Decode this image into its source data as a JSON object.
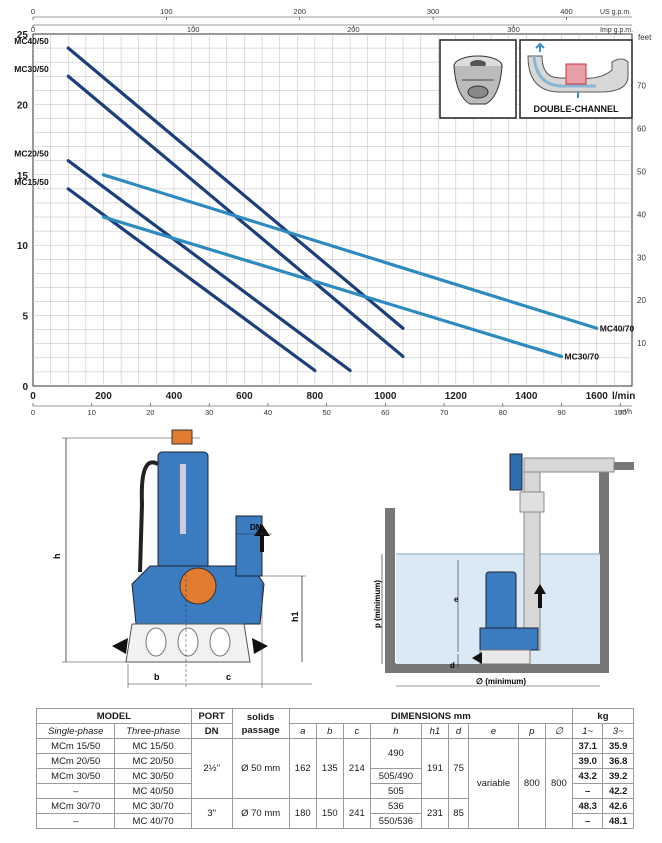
{
  "chart_data": {
    "type": "line",
    "x_axis": {
      "label": "l/min",
      "ticks": [
        0,
        200,
        400,
        600,
        800,
        1000,
        1200,
        1400,
        1600
      ],
      "range": [
        0,
        1700
      ]
    },
    "y_axis_left": {
      "ticks": [
        0,
        5,
        10,
        15,
        20,
        25
      ],
      "range": [
        0,
        25
      ]
    },
    "y_axis_right": {
      "label": "feet",
      "ticks": [
        10,
        20,
        30,
        40,
        50,
        60,
        70
      ]
    },
    "secondary_x_bottom": {
      "label": "m³/h",
      "ticks": [
        0,
        10,
        20,
        30,
        40,
        50,
        60,
        70,
        80,
        90,
        100
      ]
    },
    "secondary_x_top_us": {
      "label": "US g.p.m.",
      "ticks": [
        0,
        100,
        200,
        300,
        400
      ]
    },
    "secondary_x_top_imp": {
      "label": "Imp g.p.m.",
      "ticks": [
        0,
        100,
        200,
        300
      ]
    },
    "grid": true,
    "series": [
      {
        "name": "MC40/50",
        "color": "#1b3f7a",
        "points": [
          [
            100,
            24
          ],
          [
            1050,
            4.1
          ]
        ]
      },
      {
        "name": "MC30/50",
        "color": "#1b3f7a",
        "points": [
          [
            100,
            22
          ],
          [
            1050,
            2.1
          ]
        ]
      },
      {
        "name": "MC20/50",
        "color": "#1b3f7a",
        "points": [
          [
            100,
            16
          ],
          [
            900,
            1.1
          ]
        ]
      },
      {
        "name": "MC15/50",
        "color": "#1b3f7a",
        "points": [
          [
            100,
            14
          ],
          [
            800,
            1.1
          ]
        ]
      },
      {
        "name": "MC40/70",
        "color": "#2e8bbf",
        "points": [
          [
            200,
            15
          ],
          [
            1600,
            4.1
          ]
        ]
      },
      {
        "name": "MC30/70",
        "color": "#2e8bbf",
        "points": [
          [
            200,
            12
          ],
          [
            1500,
            2.1
          ]
        ]
      }
    ],
    "inset_label": "DOUBLE-CHANNEL"
  },
  "drawings": {
    "pump_dimension_labels": [
      "h",
      "h1",
      "b",
      "c",
      "DN"
    ],
    "installation_labels": [
      "p (minimum)",
      "e",
      "d",
      "∅ (minimum)"
    ]
  },
  "table": {
    "header": {
      "model": "MODEL",
      "port": "PORT",
      "port_sub": "DN",
      "solids": "solids",
      "solids_sub": "passage",
      "dimensions": "DIMENSIONS mm",
      "kg": "kg",
      "single_phase": "Single-phase",
      "three_phase": "Three-phase",
      "dims": [
        "a",
        "b",
        "c",
        "h",
        "h1",
        "d",
        "e",
        "p",
        "∅"
      ],
      "kg1": "1~",
      "kg3": "3~"
    },
    "rows": [
      {
        "single": "MCm 15/50",
        "three": "MC 15/50",
        "h": "",
        "kg1": "37.1",
        "kg3": "35.9"
      },
      {
        "single": "MCm 20/50",
        "three": "MC 20/50",
        "h": "490",
        "kg1": "39.0",
        "kg3": "36.8"
      },
      {
        "single": "MCm 30/50",
        "three": "MC 30/50",
        "h": "505/490",
        "kg1": "43.2",
        "kg3": "39.2"
      },
      {
        "single": "–",
        "three": "MC 40/50",
        "h": "505",
        "kg1": "–",
        "kg3": "42.2"
      },
      {
        "single": "MCm 30/70",
        "three": "MC 30/70",
        "h": "536",
        "kg1": "48.3",
        "kg3": "42.6"
      },
      {
        "single": "–",
        "three": "MC 40/70",
        "h": "550/536",
        "kg1": "–",
        "kg3": "48.1"
      }
    ],
    "group50": {
      "port": "2½\"",
      "solids": "Ø 50 mm",
      "a": "162",
      "b": "135",
      "c": "214",
      "h1": "191",
      "d": "75"
    },
    "group70": {
      "port": "3\"",
      "solids": "Ø 70 mm",
      "a": "180",
      "b": "150",
      "c": "241",
      "h1": "231",
      "d": "85"
    },
    "common": {
      "e": "variable",
      "p": "800",
      "diam": "800"
    }
  }
}
